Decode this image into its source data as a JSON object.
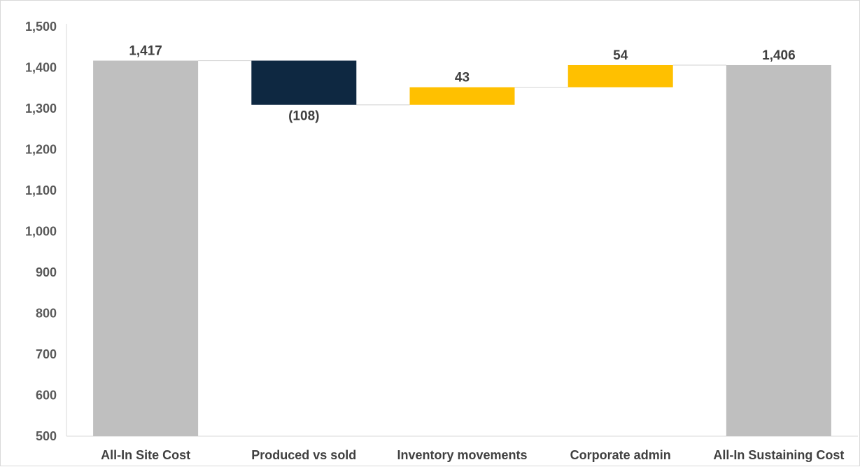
{
  "chart_data": {
    "type": "waterfall",
    "categories": [
      "All-In Site Cost",
      "Produced vs sold",
      "Inventory movements",
      "Corporate admin",
      "All-In Sustaining Cost"
    ],
    "values": [
      1417,
      -108,
      43,
      54,
      1406
    ],
    "kinds": [
      "total",
      "delta",
      "delta",
      "delta",
      "total"
    ],
    "data_labels": [
      "1,417",
      "(108)",
      "43",
      "54",
      "1,406"
    ],
    "y_ticks": [
      "500",
      "600",
      "700",
      "800",
      "900",
      "1,000",
      "1,100",
      "1,200",
      "1,300",
      "1,400",
      "1,500"
    ],
    "ylim": [
      500,
      1500
    ],
    "colors": {
      "total": "#bfbfbf",
      "decrease": "#0e2841",
      "increase": "#ffc000",
      "connector": "#d9d9d9",
      "axis": "#d9d9d9"
    },
    "grid": false,
    "legend": "none"
  }
}
